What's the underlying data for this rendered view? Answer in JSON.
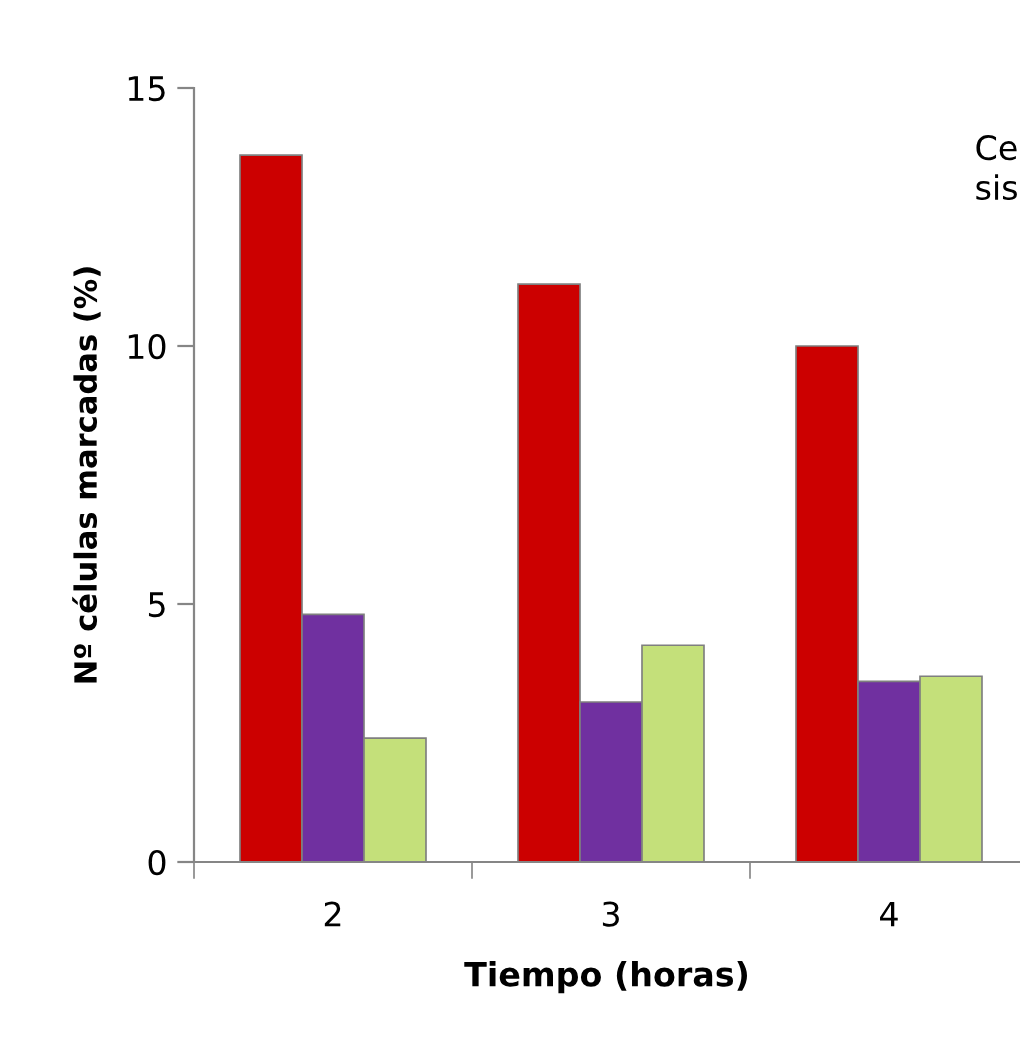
{
  "chart_data": {
    "type": "bar",
    "xlabel": "Tiempo (horas)",
    "ylabel": "Nº células marcadas (%)",
    "categories": [
      "2",
      "3",
      "4"
    ],
    "series": [
      {
        "color": "#cc0000",
        "values": [
          13.7,
          11.2,
          10.0
        ]
      },
      {
        "color": "#7030a0",
        "values": [
          4.8,
          3.1,
          3.5
        ]
      },
      {
        "color": "#c4e07a",
        "values": [
          2.4,
          4.2,
          3.6
        ]
      }
    ],
    "ylim": [
      0,
      15
    ],
    "yticks": [
      0,
      5,
      10,
      15
    ],
    "grid": false,
    "legend": false,
    "annotations": [
      "Ce\nsis"
    ]
  }
}
